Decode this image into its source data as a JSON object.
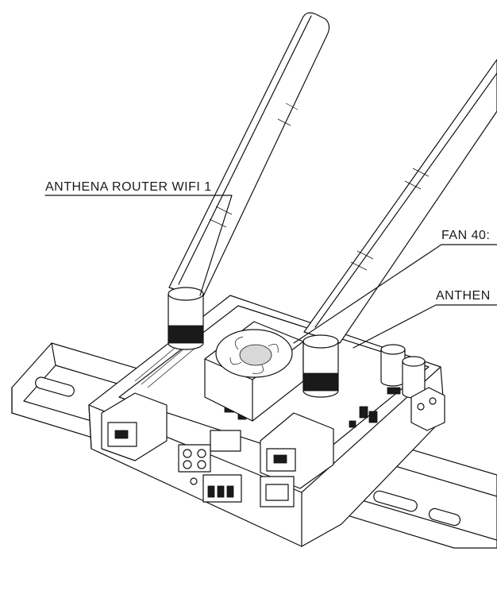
{
  "callouts": {
    "router_wifi_1": "ANTHENA ROUTER WIFI 1",
    "fan": "FAN 40:",
    "anthena_2": "ANTHEN"
  },
  "colors": {
    "line": "#111111",
    "background": "#ffffff",
    "dark_fill": "#1a1a1a"
  }
}
